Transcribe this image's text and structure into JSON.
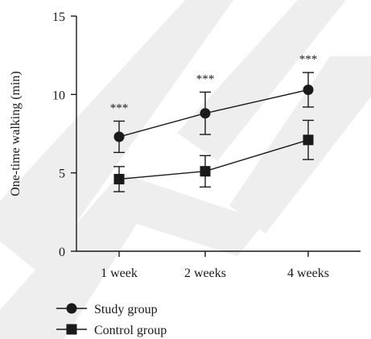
{
  "chart_data": {
    "type": "line",
    "categories": [
      "1 week",
      "2 weeks",
      "4 weeks"
    ],
    "ylabel": "One-time walking (min)",
    "ylim": [
      0,
      15
    ],
    "yticks": [
      0,
      5,
      10,
      15
    ],
    "grid": false,
    "legend_position": "bottom-left",
    "series": [
      {
        "name": "Study group",
        "marker": "circle",
        "values": [
          7.3,
          8.8,
          10.3
        ],
        "error": [
          1.0,
          1.35,
          1.1
        ],
        "significance": [
          "***",
          "***",
          "***"
        ]
      },
      {
        "name": "Control group",
        "marker": "square",
        "values": [
          4.6,
          5.1,
          7.1
        ],
        "error": [
          0.8,
          1.0,
          1.25
        ]
      }
    ]
  },
  "watermark": {
    "text": "RETRACTED",
    "color": "#eeeeee"
  },
  "colors": {
    "ink": "#1a1a1a"
  }
}
